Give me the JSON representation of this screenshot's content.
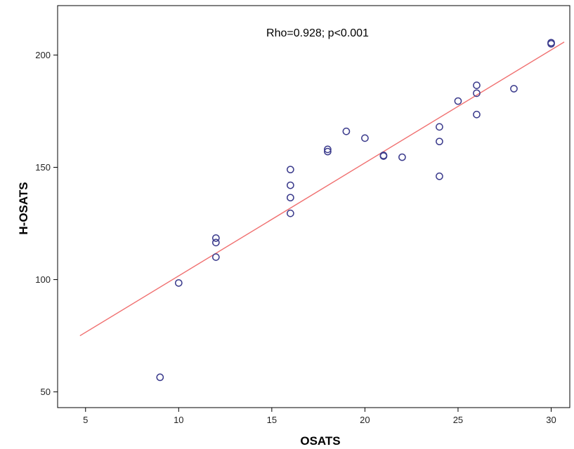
{
  "chart_data": {
    "type": "scatter",
    "xlabel": "OSATS",
    "ylabel": "H-OSATS",
    "annotation": "Rho=0.928; p<0.001",
    "xlim": [
      3.5,
      31
    ],
    "ylim": [
      43,
      222
    ],
    "x_ticks": [
      "5",
      "10",
      "15",
      "20",
      "25",
      "30"
    ],
    "y_ticks": [
      "50",
      "100",
      "150",
      "200"
    ],
    "grid": false,
    "legend": "none",
    "marker_color": "#3b3b8c",
    "fit_line_color": "#f07070",
    "points": [
      {
        "x": 9,
        "y": 56.5
      },
      {
        "x": 10,
        "y": 98.5
      },
      {
        "x": 12,
        "y": 110
      },
      {
        "x": 12,
        "y": 116.5
      },
      {
        "x": 12,
        "y": 118.5
      },
      {
        "x": 16,
        "y": 129.5
      },
      {
        "x": 16,
        "y": 136.5
      },
      {
        "x": 16,
        "y": 142
      },
      {
        "x": 16,
        "y": 149
      },
      {
        "x": 18,
        "y": 157
      },
      {
        "x": 18,
        "y": 158
      },
      {
        "x": 19,
        "y": 166
      },
      {
        "x": 20,
        "y": 163
      },
      {
        "x": 21,
        "y": 155
      },
      {
        "x": 21,
        "y": 155.3
      },
      {
        "x": 22,
        "y": 154.5
      },
      {
        "x": 24,
        "y": 146
      },
      {
        "x": 24,
        "y": 161.5
      },
      {
        "x": 24,
        "y": 168
      },
      {
        "x": 25,
        "y": 179.5
      },
      {
        "x": 26,
        "y": 173.5
      },
      {
        "x": 26,
        "y": 183
      },
      {
        "x": 26,
        "y": 186.5
      },
      {
        "x": 28,
        "y": 185
      },
      {
        "x": 30,
        "y": 205
      },
      {
        "x": 30,
        "y": 205.5
      }
    ],
    "fit_line": {
      "x": [
        4.7,
        30.7
      ],
      "y": [
        75,
        205.8
      ]
    }
  }
}
